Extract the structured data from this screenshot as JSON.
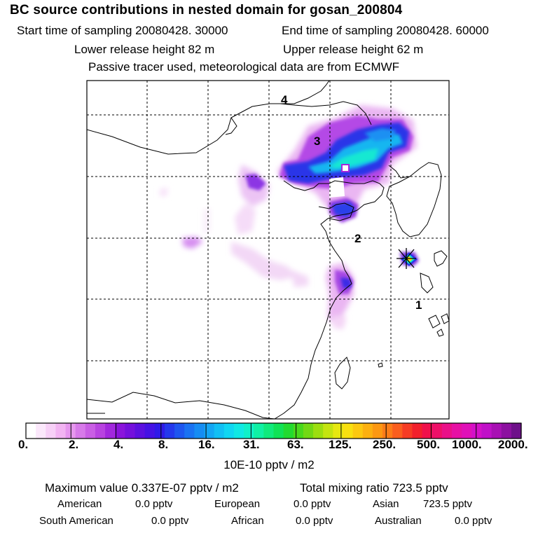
{
  "header": {
    "title": "BC  source contributions in nested domain for gosan_200804",
    "start_time": "Start time of sampling 20080428. 30000",
    "end_time": "End time of sampling 20080428. 60000",
    "lower_height": "Lower release height   82 m",
    "upper_height": "Upper release height   62 m",
    "tracer_note": "Passive tracer used, meteorological data are from ECMWF"
  },
  "map": {
    "cluster_labels": [
      "1",
      "2",
      "3",
      "4"
    ],
    "receptor_marker": "gosan-site"
  },
  "colorbar": {
    "ticks": [
      "0.",
      "2.",
      "4.",
      "8.",
      "16.",
      "31.",
      "63.",
      "125.",
      "250.",
      "500.",
      "1000.",
      "2000."
    ],
    "units": "10E-10 pptv / m2",
    "colors": [
      "#ffffff",
      "#fbe8fb",
      "#f7d0f7",
      "#f2b4f2",
      "#e697ee",
      "#d77ae9",
      "#c95ee4",
      "#b843e0",
      "#a228dd",
      "#8a14db",
      "#7410dc",
      "#5c10df",
      "#4512e4",
      "#2f1ae8",
      "#2438ec",
      "#1e56ef",
      "#1a72f2",
      "#168cf3",
      "#14a6f4",
      "#12bff4",
      "#10d6f2",
      "#10e8e4",
      "#10f0c8",
      "#10f0a4",
      "#10ea7c",
      "#10e256",
      "#22da30",
      "#48d81c",
      "#72d814",
      "#9cde10",
      "#c4e410",
      "#e6e810",
      "#f8e010",
      "#fcc810",
      "#fcb010",
      "#fc9812",
      "#fc7c18",
      "#fa5e1e",
      "#f63c24",
      "#f2202c",
      "#f0104a",
      "#ee1068",
      "#ea1088",
      "#e610a4",
      "#e010b8",
      "#d410c8",
      "#c010c8",
      "#a810b4",
      "#8c10a0",
      "#6e108a"
    ]
  },
  "stats": {
    "max_value": "Maximum value  0.337E-07 pptv / m2",
    "total_mixing": "Total mixing ratio      723.5 pptv"
  },
  "regions": {
    "american": {
      "label": "American",
      "value": "0.0 pptv"
    },
    "european": {
      "label": "European",
      "value": "0.0 pptv"
    },
    "asian": {
      "label": "Asian",
      "value": "723.5 pptv"
    },
    "south_american": {
      "label": "South American",
      "value": "0.0 pptv"
    },
    "african": {
      "label": "African",
      "value": "0.0 pptv"
    },
    "australian": {
      "label": "Australian",
      "value": "0.0 pptv"
    }
  }
}
